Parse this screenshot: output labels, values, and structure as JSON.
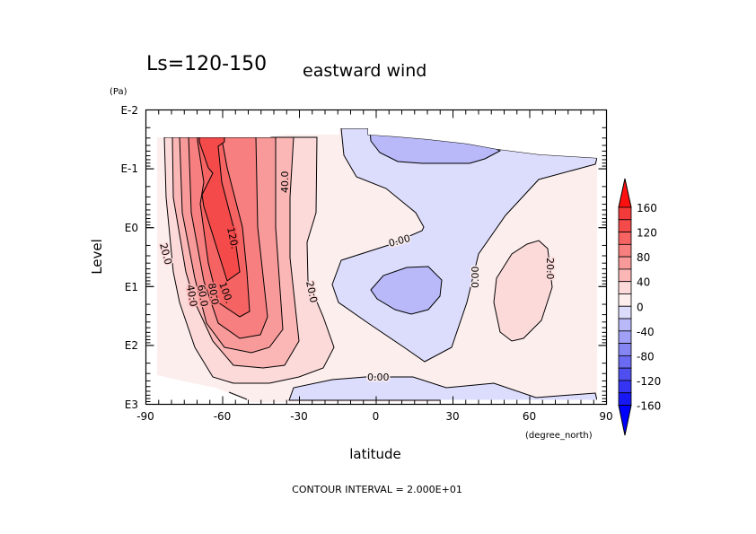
{
  "chart_data": {
    "type": "contour",
    "title": "Ls=120-150",
    "subtitle": "eastward wind",
    "xlabel": "latitude",
    "xunit": "(degree_north)",
    "ylabel": "Level",
    "yunit": "(Pa)",
    "xlim": [
      -90,
      90
    ],
    "ylim": [
      "E3",
      "E-2"
    ],
    "y_scale": "log",
    "x_ticks": [
      "-90",
      "-60",
      "-30",
      "0",
      "30",
      "60",
      "90"
    ],
    "y_ticks": [
      "E-2",
      "E-1",
      "E0",
      "E1",
      "E2",
      "E3"
    ],
    "contour_interval_label": "CONTOUR INTERVAL = 2.000E+01",
    "contour_labels": [
      "20.0",
      "120.",
      "40.0",
      "20.0",
      "0.00",
      "0.00",
      "0.00",
      "20.0",
      "40.0",
      "60.0",
      "80.0",
      "100."
    ],
    "features": [
      {
        "desc": "southern westerly jet",
        "lat_range": [
          -85,
          -30
        ],
        "max_approx": 140
      },
      {
        "desc": "easterly minimum",
        "lat": 15,
        "level": "E1",
        "range": [
          -40,
          -20
        ]
      },
      {
        "desc": "westerly maximum",
        "lat": 60,
        "level": "E1",
        "range": [
          20,
          40
        ]
      }
    ],
    "colorbar": {
      "ticks": [
        "160",
        "120",
        "80",
        "40",
        "0",
        "-40",
        "-80",
        "-120",
        "-160"
      ],
      "levels": [
        160,
        140,
        120,
        100,
        80,
        60,
        40,
        20,
        0,
        -20,
        -40,
        -60,
        -80,
        -100,
        -120,
        -140,
        -160
      ],
      "colors": [
        "#ff1010",
        "#f23a3a",
        "#f44a4a",
        "#f56363",
        "#f77f7f",
        "#f99a9a",
        "#fbb6b6",
        "#fddada",
        "#fdeeee",
        "#dcdcfc",
        "#b9b9f9",
        "#a0a0f6",
        "#8585f4",
        "#6a6af2",
        "#4f4ff0",
        "#3434f2",
        "#1818f4",
        "#0000ff"
      ]
    }
  }
}
